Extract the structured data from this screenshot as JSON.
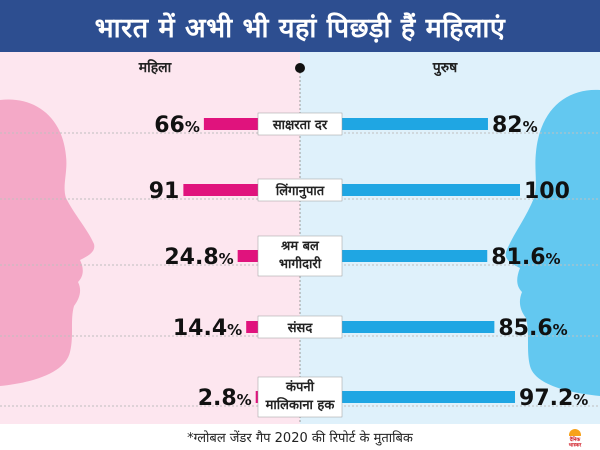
{
  "title": "भारत में अभी भी यहां पिछड़ी हैं महिलाएं",
  "footnote": "*ग्लोबल जेंडर गैप 2020 की रिपोर्ट के मुताबिक",
  "logo_text": "दैनिक भास्कर",
  "colors": {
    "title_bg": "#2d4e90",
    "female_bar": "#e0137d",
    "male_bar": "#1fa6e3",
    "female_bg": "#fde6ef",
    "male_bg": "#dff1fb",
    "female_silhouette": "#f4a9c7",
    "male_silhouette": "#63c8f0"
  },
  "chart_data": {
    "type": "bar",
    "subtype": "diverging-butterfly",
    "series": [
      {
        "name": "महिला",
        "values": [
          66,
          91,
          24.8,
          14.4,
          2.8
        ]
      },
      {
        "name": "पुरुष",
        "values": [
          82,
          100,
          81.6,
          85.6,
          97.2
        ]
      }
    ],
    "categories": [
      "साक्षरता दर",
      "लिंगानुपात",
      "श्रम बल भागीदारी",
      "संसद",
      "कंपनी मालिकाना हक"
    ],
    "category_lines": [
      [
        "साक्षरता दर"
      ],
      [
        "लिंगानुपात"
      ],
      [
        "श्रम बल",
        "भागीदारी"
      ],
      [
        "संसद"
      ],
      [
        "कंपनी",
        "मालिकाना हक"
      ]
    ],
    "value_labels": {
      "female": [
        {
          "num": "66",
          "unit": "%"
        },
        {
          "num": "91",
          "unit": ""
        },
        {
          "num": "24.8",
          "unit": "%"
        },
        {
          "num": "14.4",
          "unit": "%"
        },
        {
          "num": "2.8",
          "unit": "%"
        }
      ],
      "male": [
        {
          "num": "82",
          "unit": "%"
        },
        {
          "num": "100",
          "unit": ""
        },
        {
          "num": "81.6",
          "unit": "%"
        },
        {
          "num": "85.6",
          "unit": "%"
        },
        {
          "num": "97.2",
          "unit": "%"
        }
      ]
    },
    "headers": {
      "female": "महिला",
      "male": "पुरुष"
    },
    "xlim": [
      0,
      100
    ]
  }
}
